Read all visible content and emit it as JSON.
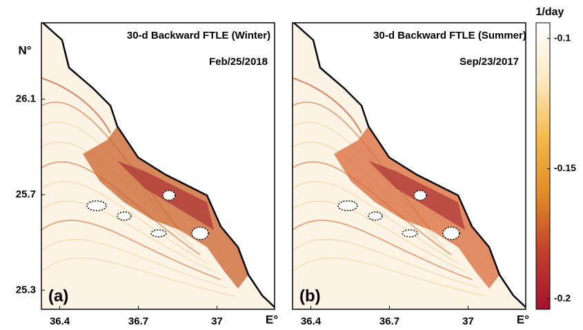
{
  "panels": [
    {
      "title": "30-d Backward FTLE (Winter)",
      "date": "Feb/25/2018",
      "label": "(a)"
    },
    {
      "title": "30-d Backward FTLE (Summer)",
      "date": "Sep/23/2017",
      "label": "(b)"
    }
  ],
  "axes": {
    "xlim": [
      36.33,
      37.22
    ],
    "xticks": [
      36.4,
      36.7,
      37
    ],
    "x_unit": "E°",
    "ylim": [
      25.22,
      26.42
    ],
    "yticks": [
      26.1,
      25.7,
      25.3
    ],
    "y_unit": "N°"
  },
  "colorbar": {
    "label": "1/day",
    "lim": [
      -0.204,
      -0.094
    ],
    "ticks": [
      -0.1,
      -0.15,
      -0.2
    ],
    "colormap": [
      "#ffffff",
      "#fbe9c4",
      "#f3b94a",
      "#e08a28",
      "#c0402c",
      "#a3132e"
    ]
  }
}
